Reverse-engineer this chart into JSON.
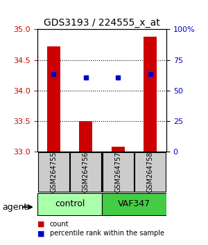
{
  "title": "GDS3193 / 224555_x_at",
  "samples": [
    "GSM264755",
    "GSM264756",
    "GSM264757",
    "GSM264758"
  ],
  "bar_values": [
    34.72,
    33.5,
    33.08,
    34.88
  ],
  "bar_bottom": 33.0,
  "percentile_values": [
    34.27,
    34.22,
    34.22,
    34.27
  ],
  "ylim": [
    33.0,
    35.0
  ],
  "yticks_left": [
    33,
    33.5,
    34,
    34.5,
    35
  ],
  "yticks_right": [
    0,
    25,
    50,
    75,
    100
  ],
  "ytick_labels_right": [
    "0",
    "25",
    "50",
    "75",
    "100%"
  ],
  "bar_color": "#cc0000",
  "percentile_color": "#0000cc",
  "groups": [
    {
      "label": "control",
      "samples": [
        0,
        1
      ],
      "color": "#aaffaa"
    },
    {
      "label": "VAF347",
      "samples": [
        2,
        3
      ],
      "color": "#44cc44"
    }
  ],
  "group_label": "agent",
  "legend_items": [
    {
      "color": "#cc0000",
      "label": "count"
    },
    {
      "color": "#0000cc",
      "label": "percentile rank within the sample"
    }
  ],
  "background_color": "#ffffff",
  "plot_bg": "#ffffff",
  "grid_color": "#000000",
  "bar_width": 0.4
}
